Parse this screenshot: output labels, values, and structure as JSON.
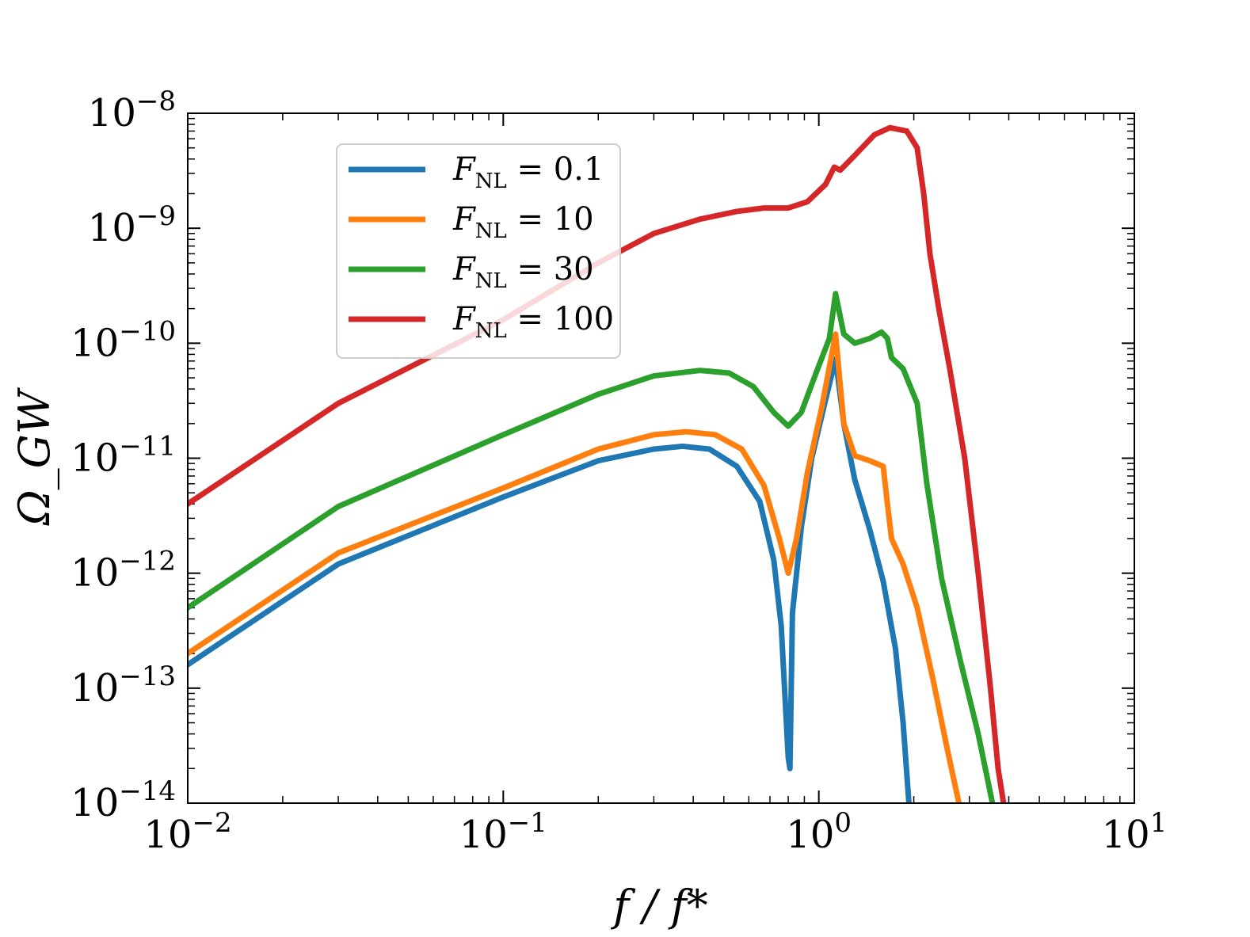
{
  "chart_data": {
    "type": "line",
    "title": "",
    "xlabel": "f / f*",
    "ylabel": "Ω_GW",
    "xscale": "log",
    "yscale": "log",
    "xlim": [
      0.01,
      10
    ],
    "ylim": [
      1e-14,
      1e-08
    ],
    "x_ticks": [
      {
        "base": "10",
        "exp": "−2",
        "value": 0.01
      },
      {
        "base": "10",
        "exp": "−1",
        "value": 0.1
      },
      {
        "base": "10",
        "exp": "0",
        "value": 1
      },
      {
        "base": "10",
        "exp": "1",
        "value": 10
      }
    ],
    "y_ticks": [
      {
        "base": "10",
        "exp": "−8",
        "value": 1e-08
      },
      {
        "base": "10",
        "exp": "−9",
        "value": 1e-09
      },
      {
        "base": "10",
        "exp": "−10",
        "value": 1e-10
      },
      {
        "base": "10",
        "exp": "−11",
        "value": 1e-11
      },
      {
        "base": "10",
        "exp": "−12",
        "value": 1e-12
      },
      {
        "base": "10",
        "exp": "−13",
        "value": 1e-13
      },
      {
        "base": "10",
        "exp": "−14",
        "value": 1e-14
      }
    ],
    "legend_position": "upper-left",
    "series": [
      {
        "name": "F_NL = 0.1",
        "label_main": "F",
        "label_sub": "NL",
        "label_rest": " = 0.1",
        "color": "#1f77b4",
        "points": [
          [
            0.01,
            1.6e-13
          ],
          [
            0.03,
            1.2e-12
          ],
          [
            0.1,
            4.6e-12
          ],
          [
            0.2,
            9.5e-12
          ],
          [
            0.3,
            1.2e-11
          ],
          [
            0.37,
            1.27e-11
          ],
          [
            0.45,
            1.2e-11
          ],
          [
            0.55,
            8.5e-12
          ],
          [
            0.65,
            4.2e-12
          ],
          [
            0.72,
            1.3e-12
          ],
          [
            0.76,
            3.5e-13
          ],
          [
            0.8,
            2.5e-14
          ],
          [
            0.81,
            2e-14
          ],
          [
            0.825,
            4.5e-13
          ],
          [
            0.88,
            2.5e-12
          ],
          [
            0.95,
            1e-11
          ],
          [
            1.05,
            3.2e-11
          ],
          [
            1.13,
            7.3e-11
          ],
          [
            1.2,
            2e-11
          ],
          [
            1.3,
            6.5e-12
          ],
          [
            1.45,
            2.4e-12
          ],
          [
            1.6,
            8.5e-13
          ],
          [
            1.75,
            2.2e-13
          ],
          [
            1.85,
            5e-14
          ],
          [
            1.93,
            1e-14
          ]
        ]
      },
      {
        "name": "F_NL = 10",
        "label_main": "F",
        "label_sub": "NL",
        "label_rest": " = 10",
        "color": "#ff7f0e",
        "points": [
          [
            0.01,
            2e-13
          ],
          [
            0.03,
            1.5e-12
          ],
          [
            0.1,
            5.5e-12
          ],
          [
            0.2,
            1.2e-11
          ],
          [
            0.3,
            1.6e-11
          ],
          [
            0.38,
            1.7e-11
          ],
          [
            0.47,
            1.6e-11
          ],
          [
            0.57,
            1.2e-11
          ],
          [
            0.67,
            5.8e-12
          ],
          [
            0.75,
            2e-12
          ],
          [
            0.8,
            1e-12
          ],
          [
            0.85,
            2e-12
          ],
          [
            0.92,
            7.5e-12
          ],
          [
            1.02,
            2.7e-11
          ],
          [
            1.13,
            1.2e-10
          ],
          [
            1.2,
            2e-11
          ],
          [
            1.3,
            1.05e-11
          ],
          [
            1.45,
            9.5e-12
          ],
          [
            1.6,
            8.5e-12
          ],
          [
            1.65,
            4e-12
          ],
          [
            1.7,
            2e-12
          ],
          [
            1.85,
            1.2e-12
          ],
          [
            2.05,
            5e-13
          ],
          [
            2.3,
            1.2e-13
          ],
          [
            2.55,
            3e-14
          ],
          [
            2.78,
            1e-14
          ]
        ]
      },
      {
        "name": "F_NL = 30",
        "label_main": "F",
        "label_sub": "NL",
        "label_rest": " = 30",
        "color": "#2ca02c",
        "points": [
          [
            0.01,
            5e-13
          ],
          [
            0.03,
            3.8e-12
          ],
          [
            0.1,
            1.6e-11
          ],
          [
            0.2,
            3.6e-11
          ],
          [
            0.3,
            5.2e-11
          ],
          [
            0.42,
            5.8e-11
          ],
          [
            0.52,
            5.5e-11
          ],
          [
            0.62,
            4.2e-11
          ],
          [
            0.72,
            2.5e-11
          ],
          [
            0.8,
            1.9e-11
          ],
          [
            0.88,
            2.5e-11
          ],
          [
            0.98,
            5.5e-11
          ],
          [
            1.08,
            1.1e-10
          ],
          [
            1.13,
            2.7e-10
          ],
          [
            1.2,
            1.2e-10
          ],
          [
            1.3,
            1e-10
          ],
          [
            1.45,
            1.1e-10
          ],
          [
            1.58,
            1.25e-10
          ],
          [
            1.65,
            1.1e-10
          ],
          [
            1.7,
            7.5e-11
          ],
          [
            1.85,
            6e-11
          ],
          [
            2.05,
            3e-11
          ],
          [
            2.2,
            6e-12
          ],
          [
            2.45,
            9e-13
          ],
          [
            2.8,
            1.8e-13
          ],
          [
            3.2,
            4e-14
          ],
          [
            3.55,
            1e-14
          ]
        ]
      },
      {
        "name": "F_NL = 100",
        "label_main": "F",
        "label_sub": "NL",
        "label_rest": " = 100",
        "color": "#d62728",
        "points": [
          [
            0.01,
            4e-12
          ],
          [
            0.03,
            3e-11
          ],
          [
            0.1,
            1.6e-10
          ],
          [
            0.2,
            5e-10
          ],
          [
            0.3,
            9e-10
          ],
          [
            0.42,
            1.2e-09
          ],
          [
            0.55,
            1.4e-09
          ],
          [
            0.67,
            1.5e-09
          ],
          [
            0.8,
            1.5e-09
          ],
          [
            0.92,
            1.7e-09
          ],
          [
            1.05,
            2.4e-09
          ],
          [
            1.12,
            3.4e-09
          ],
          [
            1.17,
            3.2e-09
          ],
          [
            1.3,
            4.3e-09
          ],
          [
            1.5,
            6.5e-09
          ],
          [
            1.68,
            7.5e-09
          ],
          [
            1.9,
            7e-09
          ],
          [
            2.05,
            5e-09
          ],
          [
            2.15,
            2e-09
          ],
          [
            2.25,
            6e-10
          ],
          [
            2.4,
            2e-10
          ],
          [
            2.6,
            6e-11
          ],
          [
            2.9,
            1e-11
          ],
          [
            3.2,
            1e-12
          ],
          [
            3.5,
            1e-13
          ],
          [
            3.7,
            2e-14
          ],
          [
            3.85,
            1e-14
          ]
        ]
      }
    ]
  }
}
